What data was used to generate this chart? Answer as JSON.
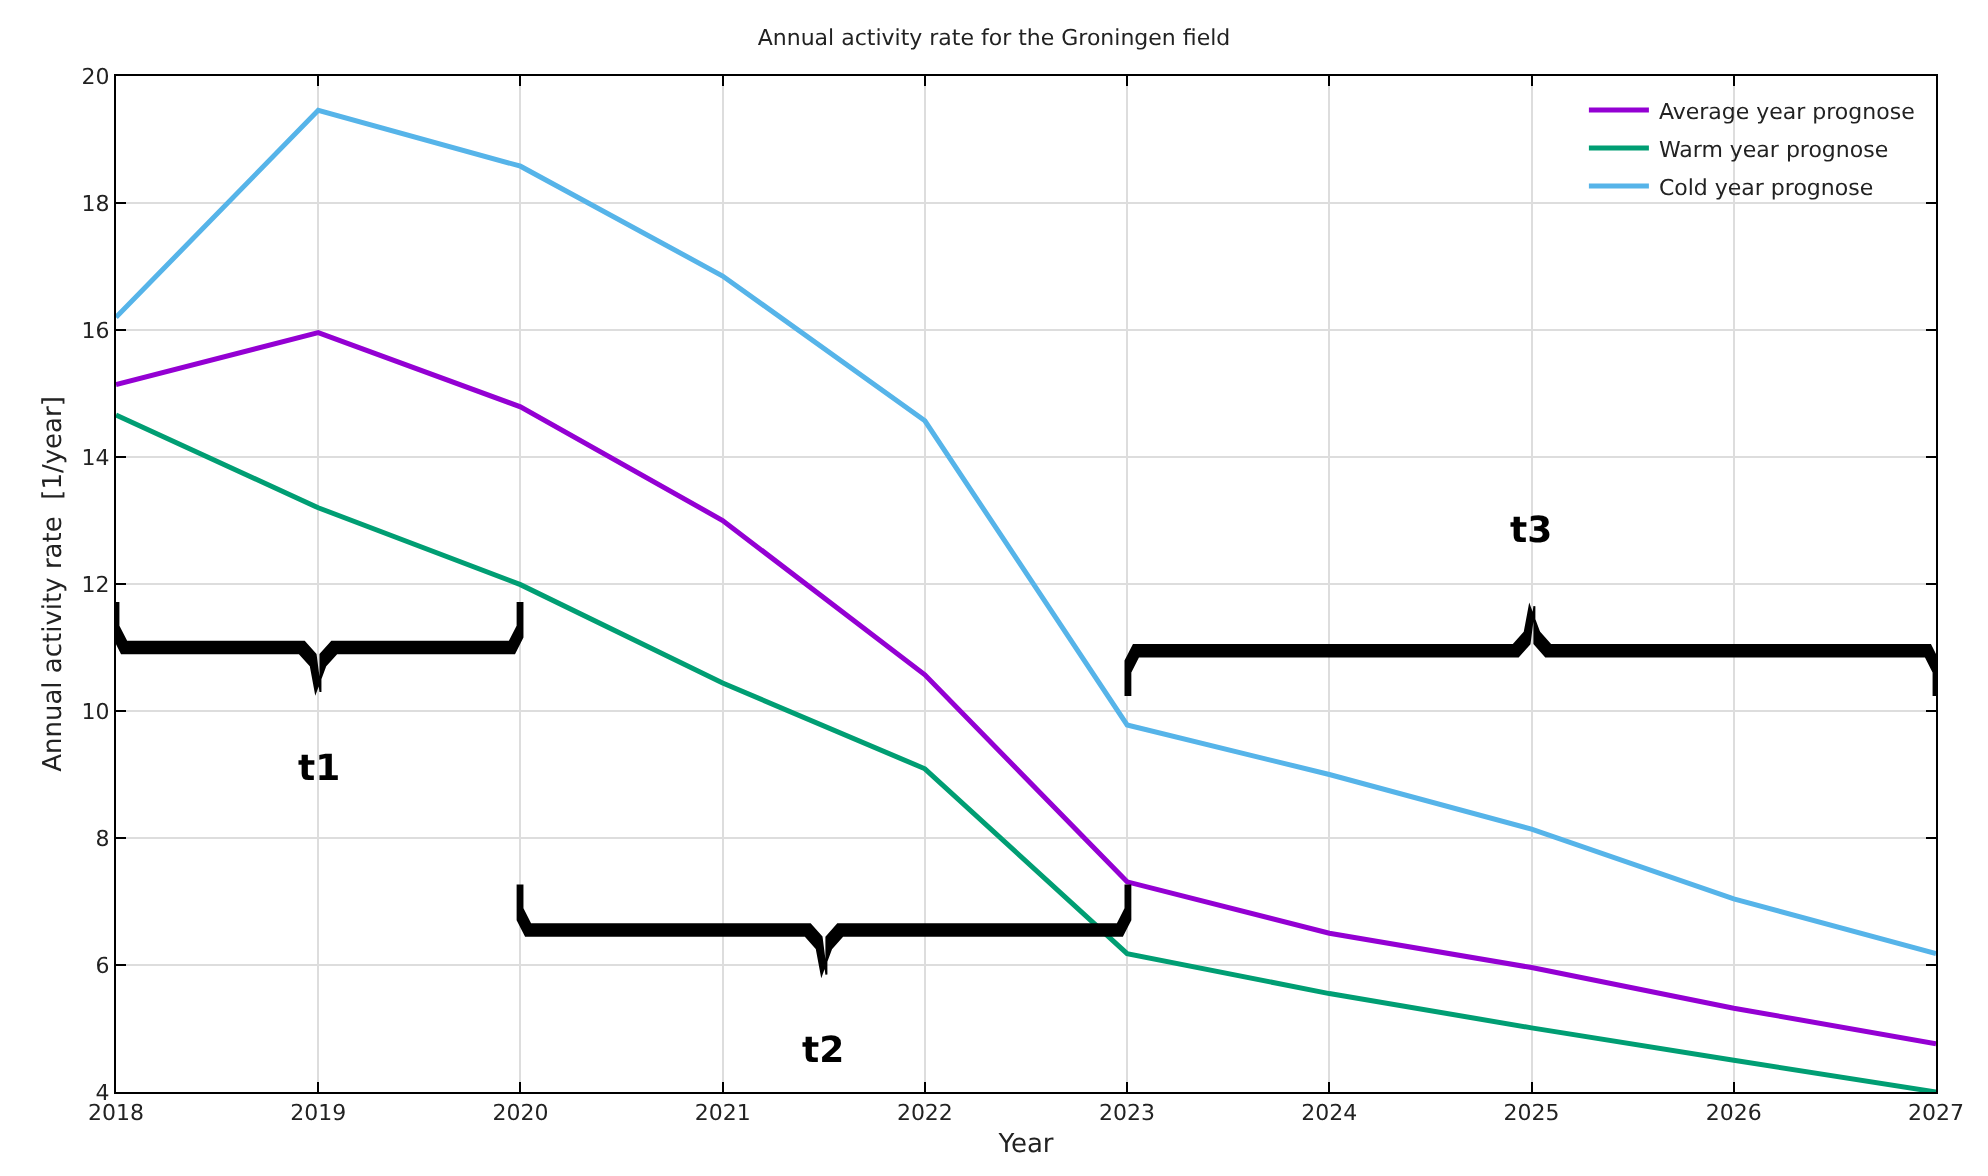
{
  "chart_data": {
    "type": "line",
    "title": "Annual activity rate for the Groningen field",
    "xlabel": "Year",
    "ylabel": "Annual activity rate  [1/year]",
    "x": [
      2018,
      2019,
      2020,
      2021,
      2022,
      2023,
      2024,
      2025,
      2026,
      2027
    ],
    "series": [
      {
        "name": "Average year prognose",
        "color": "#9400d3",
        "values": [
          15.14,
          15.96,
          14.79,
          13.0,
          10.57,
          7.31,
          6.5,
          5.96,
          5.32,
          4.76
        ]
      },
      {
        "name": "Warm year prognose",
        "color": "#009e73",
        "values": [
          14.66,
          13.2,
          11.99,
          10.44,
          9.09,
          6.18,
          5.55,
          5.01,
          4.5,
          4.0
        ]
      },
      {
        "name": "Cold year prognose",
        "color": "#56b4e9",
        "values": [
          16.2,
          19.46,
          18.58,
          16.85,
          14.57,
          9.78,
          9.0,
          8.14,
          7.04,
          6.18
        ]
      }
    ],
    "xlim": [
      2018,
      2027
    ],
    "xticks": [
      2018,
      2019,
      2020,
      2021,
      2022,
      2023,
      2024,
      2025,
      2026,
      2027
    ],
    "ylim": [
      4,
      20
    ],
    "yticks": [
      4,
      6,
      8,
      10,
      12,
      14,
      16,
      18,
      20
    ],
    "annotations": [
      "t1",
      "t2",
      "t3"
    ],
    "grid": true,
    "legend": "top right",
    "marker": "none",
    "line_style": "solid"
  }
}
